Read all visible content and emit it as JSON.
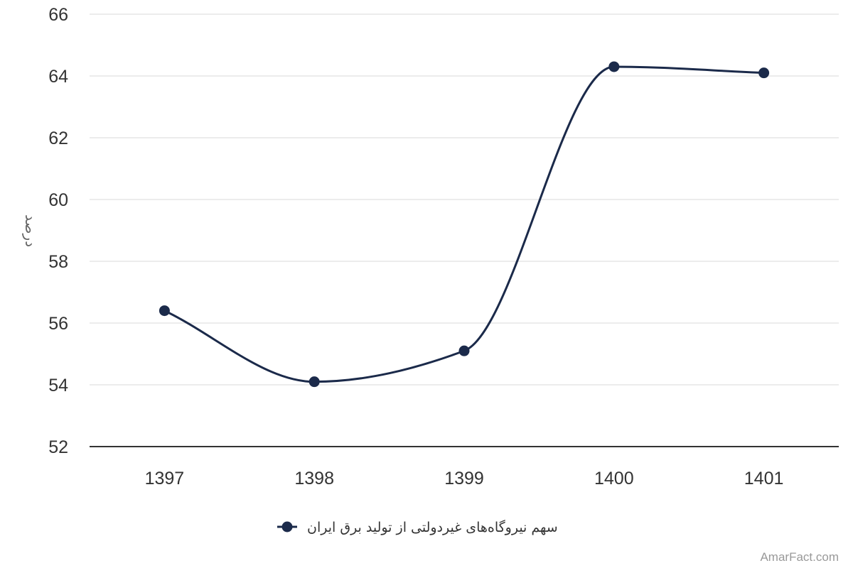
{
  "chart_data": {
    "type": "line",
    "categories": [
      "1397",
      "1398",
      "1399",
      "1400",
      "1401"
    ],
    "series": [
      {
        "name": "سهم نیروگاه‌های غیردولتی از تولید برق ایران",
        "values": [
          56.4,
          54.1,
          55.1,
          64.3,
          64.1
        ],
        "color": "#1b2a4a"
      }
    ],
    "ylabel": "درصد",
    "xlabel": "",
    "ylim": [
      52,
      66
    ],
    "yticks": [
      "52",
      "54",
      "56",
      "58",
      "60",
      "62",
      "64",
      "66"
    ],
    "grid": true,
    "smooth": true,
    "legend": "bottom-center"
  },
  "credit": "AmarFact.com",
  "colors": {
    "series": "#1b2a4a",
    "grid": "#e6e6e6",
    "axis_line": "#333333",
    "tick_text": "#333333",
    "axis_title": "#666666",
    "credit": "#999999"
  }
}
